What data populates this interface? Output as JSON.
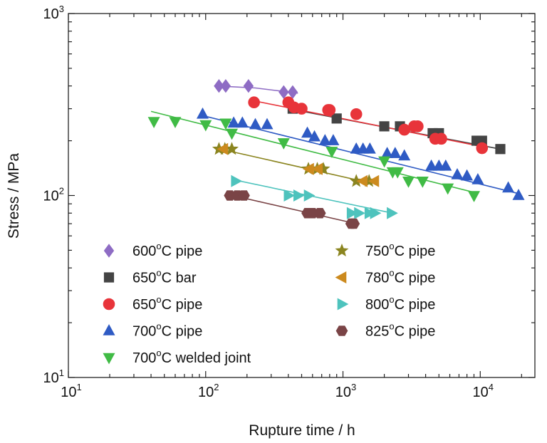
{
  "chart_data": {
    "type": "scatter",
    "xlabel": "Rupture time / h",
    "ylabel": "Stress / MPa",
    "x_scale": "log",
    "y_scale": "log",
    "xlim": [
      10,
      25000
    ],
    "ylim": [
      10,
      1000
    ],
    "x_ticks": [
      {
        "value": 10,
        "base": "10",
        "exp": "1"
      },
      {
        "value": 100,
        "base": "10",
        "exp": "2"
      },
      {
        "value": 1000,
        "base": "10",
        "exp": "3"
      },
      {
        "value": 10000,
        "base": "10",
        "exp": "4"
      }
    ],
    "y_ticks": [
      {
        "value": 10,
        "base": "10",
        "exp": "1"
      },
      {
        "value": 100,
        "base": "10",
        "exp": "2"
      },
      {
        "value": 1000,
        "base": "10",
        "exp": "3"
      }
    ],
    "grid": false,
    "legend_placement": "bottom-left, two columns",
    "series": [
      {
        "name": "600°C pipe",
        "pre": "600",
        "post": "C pipe",
        "marker": "diamond",
        "color": "#8e6cc4",
        "x": [
          125,
          140,
          205,
          370,
          430
        ],
        "y": [
          400,
          400,
          400,
          370,
          370
        ],
        "fit": [
          [
            120,
            400
          ],
          [
            230,
            390
          ],
          [
            470,
            365
          ]
        ]
      },
      {
        "name": "650°C bar",
        "pre": "650",
        "post": "C bar",
        "marker": "square",
        "color": "#444444",
        "x": [
          430,
          900,
          2000,
          2600,
          3400,
          4500,
          5000,
          9400,
          10300,
          14000
        ],
        "y": [
          300,
          265,
          240,
          240,
          240,
          220,
          220,
          200,
          200,
          180
        ],
        "fit": [
          [
            400,
            300
          ],
          [
            14000,
            180
          ]
        ]
      },
      {
        "name": "650°C pipe",
        "pre": "650",
        "post": "C pipe",
        "marker": "circle",
        "color": "#e8343a",
        "x": [
          225,
          400,
          440,
          500,
          780,
          800,
          1250,
          2800,
          3300,
          3500,
          4700,
          5200,
          10300
        ],
        "y": [
          325,
          325,
          305,
          300,
          295,
          295,
          280,
          230,
          240,
          240,
          205,
          205,
          182
        ],
        "fit": [
          [
            210,
            335
          ],
          [
            10500,
            185
          ]
        ]
      },
      {
        "name": "700°C pipe",
        "pre": "700",
        "post": "C pipe",
        "marker": "triangle-up",
        "color": "#2f5bc4",
        "x": [
          95,
          160,
          185,
          230,
          280,
          550,
          620,
          740,
          850,
          1250,
          1400,
          1570,
          2100,
          2400,
          2800,
          4400,
          5000,
          5600,
          6800,
          8000,
          9600,
          16000,
          19000
        ],
        "y": [
          280,
          250,
          250,
          245,
          245,
          220,
          210,
          200,
          200,
          180,
          180,
          180,
          170,
          170,
          165,
          145,
          145,
          145,
          130,
          128,
          122,
          110,
          100
        ],
        "fit": [
          [
            95,
            275
          ],
          [
            19500,
            102
          ]
        ]
      },
      {
        "name": "700°C welded joint",
        "pre": "700",
        "post": "C welded joint",
        "marker": "triangle-down",
        "color": "#40bb45",
        "x": [
          42,
          60,
          100,
          140,
          155,
          370,
          830,
          2000,
          2300,
          2500,
          3000,
          3800,
          5800,
          9000
        ],
        "y": [
          255,
          255,
          245,
          250,
          220,
          195,
          175,
          155,
          135,
          135,
          120,
          120,
          110,
          100
        ],
        "fit": [
          [
            40,
            290
          ],
          [
            9500,
            103
          ]
        ]
      },
      {
        "name": "750°C pipe",
        "pre": "750",
        "post": "C pipe",
        "marker": "star",
        "color": "#8b8520",
        "x": [
          125,
          138,
          155,
          560,
          650,
          720,
          1250,
          1550
        ],
        "y": [
          180,
          180,
          180,
          140,
          140,
          140,
          120,
          120
        ],
        "fit": [
          [
            120,
            182
          ],
          [
            1600,
            117
          ]
        ]
      },
      {
        "name": "780°C pipe",
        "pre": "780",
        "post": "C pipe",
        "marker": "triangle-left",
        "color": "#cc8a1e",
        "x": [
          135,
          570,
          660,
          1400,
          1700
        ],
        "y": [
          180,
          140,
          140,
          120,
          120
        ],
        "fit": null
      },
      {
        "name": "800°C pipe",
        "pre": "800",
        "post": "C pipe",
        "marker": "triangle-right",
        "color": "#4ec3bd",
        "x": [
          165,
          400,
          470,
          560,
          1150,
          1300,
          1550,
          1700,
          2250
        ],
        "y": [
          120,
          100,
          100,
          100,
          80,
          80,
          80,
          80,
          80
        ],
        "fit": [
          [
            160,
            122
          ],
          [
            2300,
            80
          ]
        ]
      },
      {
        "name": "825°C pipe",
        "pre": "825",
        "post": "C pipe",
        "marker": "hexagon",
        "color": "#7a4446",
        "x": [
          150,
          170,
          190,
          550,
          600,
          680,
          1150,
          1200
        ],
        "y": [
          100,
          100,
          100,
          80,
          80,
          80,
          70,
          70
        ],
        "fit": [
          [
            140,
            102
          ],
          [
            1250,
            70
          ]
        ]
      }
    ]
  }
}
